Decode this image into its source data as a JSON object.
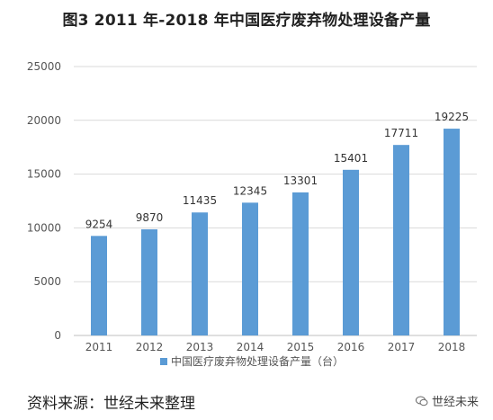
{
  "title": "图3 2011 年-2018 年中国医疗废弃物处理设备产量",
  "source": "资料来源：世经未来整理",
  "watermark": "世经未来",
  "colors": {
    "bar": "#5b9bd5",
    "grid": "#d9d9d9",
    "axis": "#bfbfbf"
  },
  "chart_data": {
    "type": "bar",
    "title": "图3 2011 年-2018 年中国医疗废弃物处理设备产量",
    "categories": [
      "2011",
      "2012",
      "2013",
      "2014",
      "2015",
      "2016",
      "2017",
      "2018"
    ],
    "series": [
      {
        "name": "中国医疗废弃物处理设备产量（台）",
        "values": [
          9254,
          9870,
          11435,
          12345,
          13301,
          15401,
          17711,
          19225
        ]
      }
    ],
    "ylim": [
      0,
      25000
    ],
    "yticks": [
      0,
      5000,
      10000,
      15000,
      20000,
      25000
    ],
    "grid": true,
    "legend": "bottom",
    "data_labels": true
  }
}
